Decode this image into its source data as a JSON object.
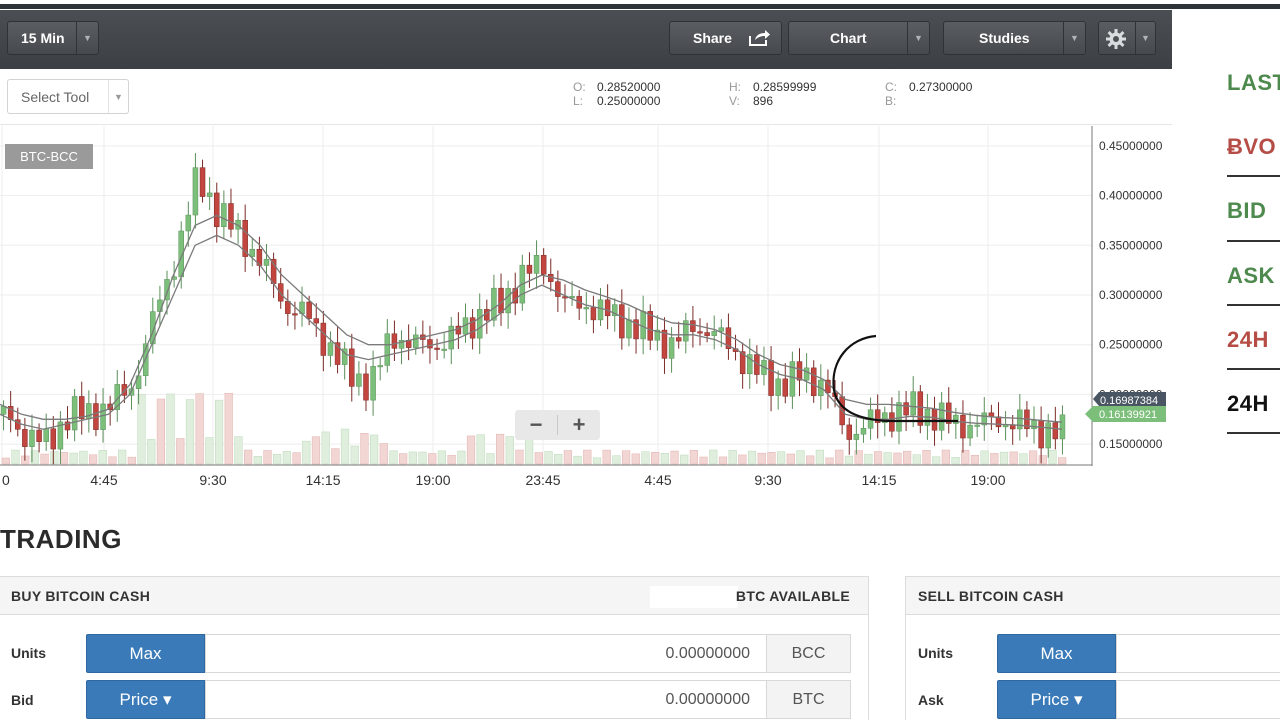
{
  "toolbar": {
    "interval": "15 Min",
    "share": "Share",
    "chart": "Chart",
    "studies": "Studies"
  },
  "tools": {
    "select_tool": "Select Tool",
    "ohlc": {
      "o_key": "O:",
      "o": "0.28520000",
      "l_key": "L:",
      "l": "0.25000000",
      "h_key": "H:",
      "h": "0.28599999",
      "v_key": "V:",
      "v": "896",
      "c_key": "C:",
      "c": "0.27300000",
      "b_key": "B:",
      "b": ""
    }
  },
  "chart": {
    "pair": "BTC-BCC",
    "price_ticks": [
      "0.45000000",
      "0.40000000",
      "0.35000000",
      "0.30000000",
      "0.25000000",
      "0.20000000",
      "0.15000000"
    ],
    "time_ticks": [
      "0",
      "4:45",
      "9:30",
      "14:15",
      "19:00",
      "23:45",
      "4:45",
      "9:30",
      "14:15",
      "19:00"
    ],
    "tag_dark": "0.16987384",
    "tag_green": "0.16139921",
    "zoom_out": "−",
    "zoom_in": "+",
    "colors": {
      "up": "#7cbf7b",
      "down": "#c2463f",
      "ma": "#7a7a7a",
      "volume_up": "#dfeedd",
      "volume_down": "#f1d6d4"
    }
  },
  "chart_data": {
    "type": "candlestick",
    "title": "BTC-BCC",
    "interval": "15 Min",
    "ylim": [
      0.13,
      0.47
    ],
    "x_ticks": [
      "0",
      "4:45",
      "9:30",
      "14:15",
      "19:00",
      "23:45",
      "4:45",
      "9:30",
      "14:15",
      "19:00"
    ],
    "y_ticks": [
      0.45,
      0.4,
      0.35,
      0.3,
      0.25,
      0.2,
      0.15
    ],
    "close_path": [
      0.18,
      0.16,
      0.15,
      0.18,
      0.18,
      0.19,
      0.21,
      0.28,
      0.34,
      0.42,
      0.38,
      0.36,
      0.33,
      0.29,
      0.28,
      0.25,
      0.22,
      0.21,
      0.26,
      0.25,
      0.25,
      0.26,
      0.28,
      0.29,
      0.32,
      0.33,
      0.29,
      0.29,
      0.28,
      0.27,
      0.26,
      0.25,
      0.27,
      0.26,
      0.24,
      0.22,
      0.21,
      0.22,
      0.21,
      0.16,
      0.17,
      0.18,
      0.185,
      0.18,
      0.17,
      0.17,
      0.175,
      0.17,
      0.165,
      0.16
    ],
    "ma_fast": [
      0.18,
      0.17,
      0.165,
      0.17,
      0.175,
      0.18,
      0.2,
      0.25,
      0.3,
      0.35,
      0.36,
      0.35,
      0.33,
      0.3,
      0.28,
      0.26,
      0.24,
      0.235,
      0.24,
      0.245,
      0.25,
      0.255,
      0.265,
      0.28,
      0.3,
      0.31,
      0.3,
      0.29,
      0.285,
      0.275,
      0.265,
      0.26,
      0.26,
      0.255,
      0.245,
      0.23,
      0.22,
      0.215,
      0.205,
      0.18,
      0.175,
      0.175,
      0.178,
      0.177,
      0.173,
      0.171,
      0.17,
      0.169,
      0.167,
      0.165
    ],
    "ma_slow": [
      0.19,
      0.18,
      0.175,
      0.175,
      0.178,
      0.185,
      0.21,
      0.26,
      0.32,
      0.37,
      0.38,
      0.37,
      0.35,
      0.32,
      0.3,
      0.28,
      0.26,
      0.25,
      0.25,
      0.255,
      0.26,
      0.265,
      0.275,
      0.29,
      0.31,
      0.32,
      0.315,
      0.305,
      0.298,
      0.29,
      0.28,
      0.272,
      0.27,
      0.265,
      0.255,
      0.24,
      0.23,
      0.225,
      0.215,
      0.195,
      0.19,
      0.19,
      0.188,
      0.186,
      0.182,
      0.179,
      0.177,
      0.176,
      0.174,
      0.172
    ]
  },
  "stats": {
    "last": "LAST",
    "bvol": "ɃVO",
    "bid": "BID",
    "ask": "ASK",
    "h24_red": "24H",
    "h24_black": "24H"
  },
  "trading": {
    "title": "TRADING",
    "buy": {
      "header": "BUY BITCOIN CASH",
      "available": "BTC AVAILABLE",
      "units_label": "Units",
      "max": "Max",
      "units_value": "0.00000000",
      "units_unit": "BCC",
      "bid_label": "Bid",
      "price": "Price ▾",
      "bid_value": "0.00000000",
      "bid_unit": "BTC"
    },
    "sell": {
      "header": "SELL BITCOIN CASH",
      "units_label": "Units",
      "max": "Max",
      "ask_label": "Ask",
      "price": "Price ▾"
    }
  }
}
